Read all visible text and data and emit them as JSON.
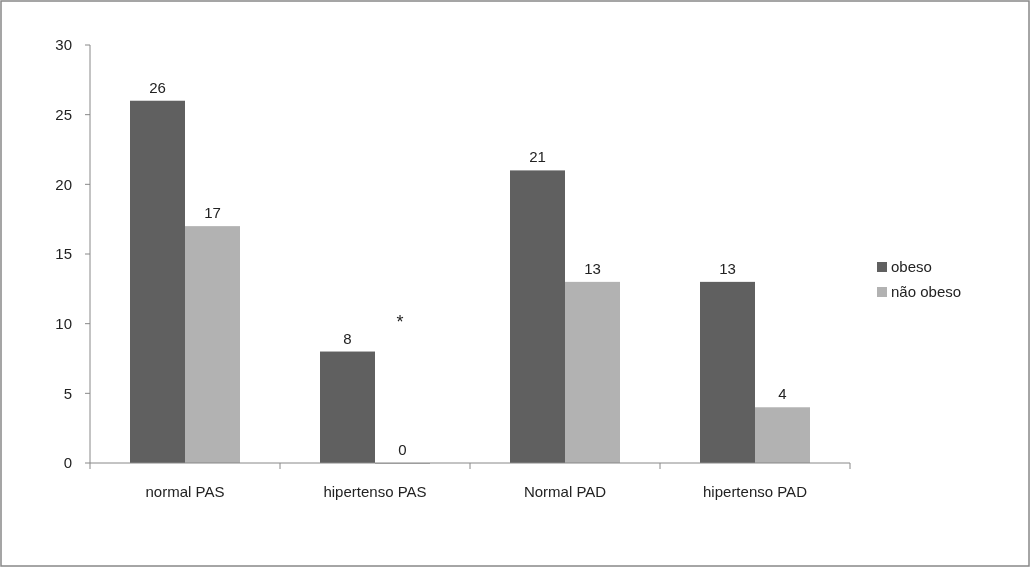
{
  "chart_data": {
    "type": "bar",
    "categories": [
      "normal PAS",
      "hipertenso PAS",
      "Normal PAD",
      "hipertenso PAD"
    ],
    "series": [
      {
        "name": "obeso",
        "color": "#606060",
        "values": [
          26,
          8,
          21,
          13
        ]
      },
      {
        "name": "não obeso",
        "color": "#b2b2b2",
        "values": [
          17,
          0,
          13,
          4
        ]
      }
    ],
    "ylim": [
      0,
      30
    ],
    "yticks": [
      0,
      5,
      10,
      15,
      20,
      25,
      30
    ],
    "grid": false,
    "legend": "right",
    "data_labels": true,
    "annotations": [
      "*"
    ]
  }
}
